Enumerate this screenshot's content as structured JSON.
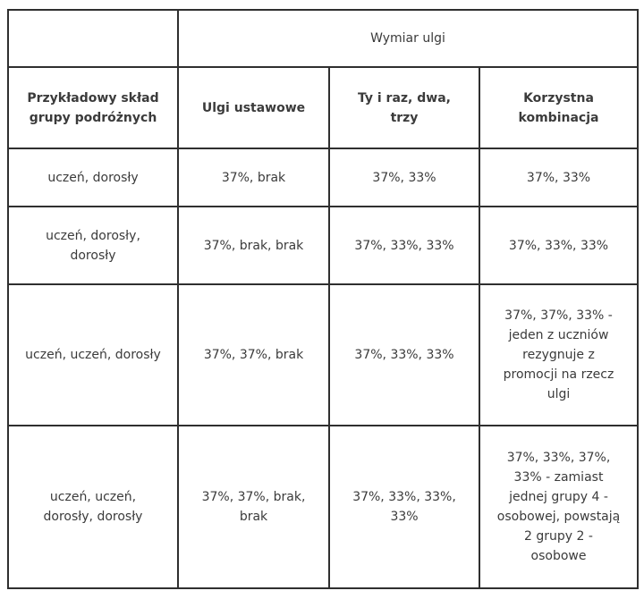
{
  "page": {
    "background_color": "#ffffff"
  },
  "table": {
    "border_color": "#2f2f2f",
    "text_color": "#3b3b3b",
    "top_header": {
      "corner": "",
      "merged_label": "Wymiar ulgi"
    },
    "column_headers": [
      "Przykładowy skład grupy podróżnych",
      "Ulgi ustawowe",
      "Ty i raz, dwa, trzy",
      "Korzystna kombinacja"
    ],
    "rows": [
      [
        "uczeń, dorosły",
        "37%, brak",
        "37%, 33%",
        "37%, 33%"
      ],
      [
        "uczeń, dorosły, dorosły",
        "37%, brak, brak",
        "37%, 33%, 33%",
        "37%, 33%, 33%"
      ],
      [
        "uczeń, uczeń, dorosły",
        "37%, 37%, brak",
        "37%, 33%, 33%",
        "37%, 37%, 33% - jeden z uczniów rezygnuje z promocji na rzecz ulgi"
      ],
      [
        "uczeń, uczeń, dorosły, dorosły",
        "37%, 37%, brak, brak",
        "37%, 33%, 33%, 33%",
        "37%, 33%, 37%, 33% - zamiast jednej grupy 4 -osobowej, powstają 2 grupy 2 -osobowe"
      ]
    ]
  }
}
